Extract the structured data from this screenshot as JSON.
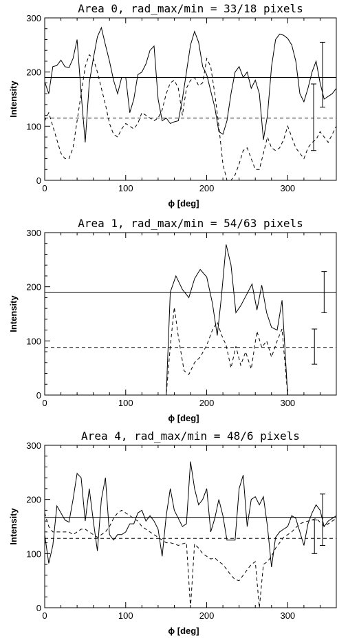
{
  "chart_data": [
    {
      "type": "line",
      "title": "Area 0, rad_max/min = 33/18 pixels",
      "xlabel": "ϕ [deg]",
      "ylabel": "Intensity",
      "xlim": [
        0,
        360
      ],
      "ylim": [
        0,
        300
      ],
      "xticks": [
        "0",
        "100",
        "200",
        "300"
      ],
      "yticks": [
        "0",
        "100",
        "200",
        "300"
      ],
      "series": [
        {
          "style": "solid",
          "x": [
            0,
            5,
            10,
            15,
            20,
            25,
            30,
            35,
            40,
            45,
            50,
            55,
            60,
            65,
            70,
            75,
            80,
            85,
            90,
            95,
            100,
            105,
            110,
            115,
            120,
            125,
            130,
            135,
            140,
            145,
            150,
            155,
            160,
            165,
            170,
            175,
            180,
            185,
            190,
            195,
            200,
            205,
            210,
            215,
            220,
            225,
            230,
            235,
            240,
            245,
            250,
            255,
            260,
            265,
            270,
            275,
            280,
            285,
            290,
            295,
            300,
            305,
            310,
            315,
            320,
            325,
            330,
            335,
            340,
            345,
            350,
            355,
            360
          ],
          "y": [
            182,
            160,
            210,
            212,
            222,
            210,
            208,
            225,
            260,
            160,
            70,
            180,
            225,
            265,
            282,
            250,
            220,
            185,
            160,
            190,
            190,
            125,
            150,
            195,
            200,
            215,
            240,
            248,
            150,
            110,
            115,
            105,
            108,
            110,
            150,
            200,
            250,
            275,
            255,
            210,
            195,
            165,
            135,
            90,
            85,
            110,
            160,
            200,
            210,
            190,
            200,
            170,
            185,
            160,
            75,
            120,
            210,
            260,
            270,
            268,
            262,
            250,
            220,
            160,
            145,
            170,
            200,
            220,
            180,
            150,
            155,
            160,
            170
          ],
          "y_mean": 190
        },
        {
          "style": "dashed",
          "x": [
            0,
            5,
            10,
            15,
            20,
            25,
            30,
            35,
            40,
            45,
            50,
            55,
            60,
            65,
            70,
            75,
            80,
            85,
            90,
            95,
            100,
            105,
            110,
            115,
            120,
            125,
            130,
            135,
            140,
            145,
            150,
            155,
            160,
            165,
            170,
            175,
            180,
            185,
            190,
            195,
            200,
            205,
            210,
            215,
            220,
            225,
            230,
            235,
            240,
            245,
            250,
            255,
            260,
            265,
            270,
            275,
            280,
            285,
            290,
            295,
            300,
            305,
            310,
            315,
            320,
            325,
            330,
            335,
            340,
            345,
            350,
            355,
            360
          ],
          "y": [
            110,
            125,
            100,
            75,
            50,
            40,
            40,
            60,
            110,
            160,
            210,
            232,
            225,
            200,
            170,
            140,
            105,
            85,
            80,
            95,
            105,
            100,
            95,
            105,
            125,
            120,
            115,
            110,
            115,
            130,
            160,
            180,
            185,
            170,
            120,
            170,
            185,
            190,
            175,
            180,
            225,
            210,
            160,
            100,
            30,
            0,
            0,
            10,
            30,
            55,
            60,
            40,
            20,
            20,
            50,
            80,
            60,
            55,
            60,
            75,
            100,
            80,
            60,
            50,
            40,
            60,
            70,
            75,
            90,
            80,
            70,
            85,
            100
          ],
          "y_mean": 115
        }
      ],
      "error_bars": [
        {
          "x": 332,
          "low": 55,
          "high": 178
        },
        {
          "x": 343,
          "low": 135,
          "high": 255
        }
      ]
    },
    {
      "type": "line",
      "title": "Area 1, rad_max/min = 54/63 pixels",
      "xlabel": "ϕ [deg]",
      "ylabel": "Intensity",
      "xlim": [
        0,
        360
      ],
      "ylim": [
        0,
        300
      ],
      "xticks": [
        "0",
        "100",
        "200",
        "300"
      ],
      "yticks": [
        "0",
        "100",
        "200",
        "300"
      ],
      "series": [
        {
          "style": "solid",
          "x": [
            0,
            150,
            155,
            162,
            170,
            178,
            185,
            192,
            200,
            207,
            213,
            218,
            224,
            230,
            236,
            242,
            248,
            256,
            262,
            268,
            274,
            280,
            287,
            293,
            300,
            305,
            360
          ],
          "y": [
            0,
            0,
            190,
            220,
            195,
            180,
            215,
            232,
            218,
            170,
            110,
            180,
            278,
            240,
            152,
            165,
            182,
            205,
            157,
            203,
            152,
            125,
            120,
            175,
            0,
            0,
            0
          ],
          "y_mean": 190
        },
        {
          "style": "dashed",
          "x": [
            0,
            150,
            155,
            160,
            165,
            172,
            178,
            185,
            192,
            200,
            207,
            213,
            218,
            224,
            230,
            236,
            242,
            248,
            255,
            262,
            268,
            274,
            280,
            287,
            293,
            300,
            305,
            360
          ],
          "y": [
            0,
            0,
            90,
            162,
            108,
            45,
            38,
            60,
            70,
            92,
            120,
            135,
            112,
            92,
            50,
            90,
            55,
            80,
            48,
            118,
            88,
            100,
            70,
            100,
            122,
            0,
            0,
            0
          ],
          "y_mean": 88
        }
      ],
      "error_bars": [
        {
          "x": 333,
          "low": 57,
          "high": 122
        },
        {
          "x": 345,
          "low": 152,
          "high": 228
        }
      ]
    },
    {
      "type": "line",
      "title": "Area 4, rad_max/min = 48/6 pixels",
      "xlabel": "ϕ [deg]",
      "ylabel": "Intensity",
      "xlim": [
        0,
        360
      ],
      "ylim": [
        0,
        300
      ],
      "xticks": [
        "0",
        "100",
        "200",
        "300"
      ],
      "yticks": [
        "0",
        "100",
        "200",
        "300"
      ],
      "series": [
        {
          "style": "solid",
          "x": [
            0,
            5,
            10,
            15,
            20,
            25,
            30,
            35,
            40,
            45,
            50,
            55,
            60,
            65,
            70,
            75,
            80,
            85,
            90,
            95,
            100,
            105,
            110,
            115,
            120,
            125,
            130,
            135,
            140,
            145,
            150,
            155,
            160,
            165,
            170,
            175,
            180,
            185,
            190,
            195,
            200,
            205,
            210,
            215,
            220,
            225,
            230,
            235,
            240,
            245,
            250,
            255,
            260,
            265,
            270,
            275,
            280,
            285,
            290,
            295,
            300,
            305,
            310,
            315,
            320,
            325,
            330,
            335,
            340,
            345,
            350,
            355,
            360
          ],
          "y": [
            135,
            82,
            115,
            188,
            175,
            162,
            158,
            200,
            248,
            240,
            160,
            220,
            160,
            105,
            200,
            240,
            135,
            125,
            135,
            135,
            140,
            155,
            155,
            175,
            180,
            160,
            170,
            160,
            145,
            95,
            170,
            220,
            180,
            165,
            150,
            155,
            270,
            220,
            190,
            200,
            220,
            140,
            165,
            200,
            170,
            125,
            125,
            125,
            220,
            245,
            150,
            200,
            205,
            190,
            205,
            150,
            75,
            130,
            140,
            145,
            150,
            170,
            165,
            140,
            115,
            155,
            175,
            190,
            180,
            150,
            160,
            165,
            170
          ],
          "y_mean": 167
        },
        {
          "style": "dashed",
          "x": [
            0,
            5,
            10,
            15,
            20,
            25,
            30,
            35,
            40,
            45,
            50,
            55,
            60,
            65,
            70,
            75,
            80,
            85,
            90,
            95,
            100,
            105,
            110,
            115,
            120,
            125,
            130,
            135,
            140,
            145,
            150,
            155,
            160,
            165,
            170,
            175,
            180,
            185,
            190,
            195,
            200,
            205,
            210,
            215,
            220,
            225,
            230,
            235,
            240,
            245,
            250,
            255,
            260,
            265,
            270,
            275,
            280,
            285,
            290,
            295,
            300,
            305,
            310,
            315,
            320,
            325,
            330,
            335,
            340,
            345,
            350,
            355,
            360
          ],
          "y": [
            175,
            150,
            140,
            140,
            140,
            140,
            140,
            135,
            140,
            145,
            145,
            140,
            135,
            130,
            135,
            140,
            150,
            165,
            175,
            180,
            175,
            170,
            165,
            160,
            150,
            145,
            140,
            135,
            130,
            125,
            120,
            120,
            118,
            115,
            118,
            120,
            0,
            118,
            110,
            100,
            95,
            90,
            92,
            85,
            80,
            70,
            60,
            52,
            50,
            60,
            70,
            80,
            85,
            0,
            80,
            85,
            95,
            110,
            120,
            130,
            135,
            140,
            148,
            155,
            158,
            160,
            162,
            165,
            158,
            150,
            155,
            160,
            165
          ],
          "y_mean": 128
        }
      ],
      "error_bars": [
        {
          "x": 333,
          "low": 100,
          "high": 162
        },
        {
          "x": 343,
          "low": 115,
          "high": 210
        }
      ]
    }
  ]
}
